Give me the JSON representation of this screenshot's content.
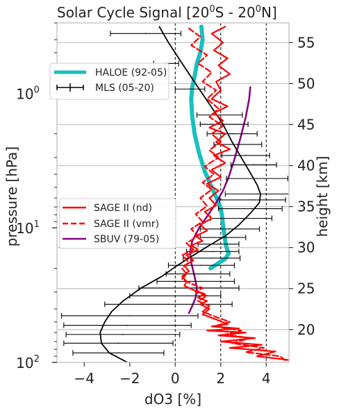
{
  "chart_data": {
    "type": "line",
    "title": "Solar Cycle Signal [20$^0$S - 20$^0$N]",
    "title_parts": {
      "a": "Solar Cycle Signal [20",
      "b": "0",
      "c": "S - 20",
      "d": "0",
      "e": "N]"
    },
    "xlabel": "dO3 [%]",
    "ylabel": "pressure [hPa]",
    "y2label": "height [km]",
    "xlim": [
      -5.2,
      5.0
    ],
    "ylim_pressure": [
      100,
      0.3
    ],
    "yscale": "log",
    "grid": true,
    "x_ticks": [
      -4,
      -2,
      0,
      2,
      4
    ],
    "x_tick_labels": [
      "−4",
      "−2",
      "0",
      "2",
      "4"
    ],
    "y_ticks": [
      1,
      10,
      100
    ],
    "y_tick_labels": [
      "10",
      "0",
      "10",
      "1",
      "10",
      "2"
    ],
    "y_tick_label_parts": [
      {
        "base": "10",
        "exp": "0"
      },
      {
        "base": "10",
        "exp": "1"
      },
      {
        "base": "10",
        "exp": "2"
      }
    ],
    "height_ticks": [
      20,
      25,
      30,
      35,
      40,
      45,
      50,
      55
    ],
    "height_tick_labels": [
      "20",
      "25",
      "30",
      "35",
      "40",
      "45",
      "50",
      "55"
    ],
    "vlines": [
      0,
      2,
      4
    ],
    "legend_top": {
      "placement": "upper-left",
      "entries": [
        {
          "label": "HALOE (92-05)"
        },
        {
          "label": "MLS (05-20)"
        }
      ]
    },
    "legend_bottom": {
      "placement": "center-left",
      "entries": [
        {
          "label": "SAGE II (nd)"
        },
        {
          "label": "SAGE II (vmr)"
        },
        {
          "label": "SBUV (79-05)"
        }
      ]
    },
    "series": [
      {
        "name": "HALOE (92-05)",
        "color": "#1abfbf",
        "points": [
          [
            1.15,
            0.32
          ],
          [
            1.2,
            0.4
          ],
          [
            1.1,
            0.5
          ],
          [
            0.95,
            0.6
          ],
          [
            0.85,
            0.75
          ],
          [
            0.75,
            0.9
          ],
          [
            0.7,
            1.1
          ],
          [
            0.75,
            1.5
          ],
          [
            0.85,
            2.0
          ],
          [
            1.05,
            2.8
          ],
          [
            1.3,
            3.8
          ],
          [
            1.6,
            5.0
          ],
          [
            1.85,
            6.2
          ],
          [
            2.0,
            7.2
          ],
          [
            2.05,
            8.0
          ],
          [
            2.1,
            9.5
          ],
          [
            2.15,
            11
          ],
          [
            2.2,
            12.5
          ],
          [
            2.25,
            14
          ],
          [
            2.35,
            15.5
          ],
          [
            2.2,
            17
          ],
          [
            1.85,
            18.5
          ],
          [
            1.55,
            20
          ]
        ]
      },
      {
        "name": "SBUV (79-05)",
        "color": "#800080",
        "points": [
          [
            3.3,
            0.9
          ],
          [
            3.25,
            1.1
          ],
          [
            3.1,
            1.5
          ],
          [
            2.85,
            2.2
          ],
          [
            2.6,
            3.1
          ],
          [
            2.35,
            4.2
          ],
          [
            2.1,
            5.3
          ],
          [
            1.8,
            6.5
          ],
          [
            1.45,
            8.0
          ],
          [
            1.05,
            10.0
          ],
          [
            0.75,
            12.5
          ],
          [
            0.65,
            15
          ],
          [
            0.7,
            18
          ],
          [
            0.85,
            23
          ],
          [
            0.95,
            28
          ],
          [
            0.9,
            33
          ],
          [
            0.75,
            38
          ],
          [
            0.6,
            43
          ]
        ]
      },
      {
        "name": "MLS (05-20)",
        "color": "#000000",
        "points": [
          [
            -0.7,
            0.32
          ],
          [
            -0.3,
            0.42
          ],
          [
            0.3,
            0.6
          ],
          [
            0.9,
            0.85
          ],
          [
            1.5,
            1.2
          ],
          [
            2.1,
            1.7
          ],
          [
            2.5,
            2.3
          ],
          [
            2.9,
            3.0
          ],
          [
            3.3,
            3.9
          ],
          [
            3.6,
            4.8
          ],
          [
            3.75,
            5.6
          ],
          [
            3.7,
            6.5
          ],
          [
            3.3,
            7.8
          ],
          [
            2.8,
            9.5
          ],
          [
            2.2,
            11.5
          ],
          [
            1.5,
            13.5
          ],
          [
            0.8,
            16
          ],
          [
            0.1,
            19
          ],
          [
            -0.6,
            23
          ],
          [
            -1.5,
            28
          ],
          [
            -2.3,
            35
          ],
          [
            -2.8,
            42
          ],
          [
            -3.1,
            50
          ],
          [
            -3.3,
            60
          ],
          [
            -3.25,
            72
          ],
          [
            -2.9,
            85
          ],
          [
            -2.1,
            100
          ]
        ],
        "errorbars": [
          {
            "p": 0.36,
            "x": -1.3,
            "e": 1.55
          },
          {
            "p": 0.6,
            "x": -0.4,
            "e": 0.55
          },
          {
            "p": 0.93,
            "x": 0.65,
            "e": 0.65
          },
          {
            "p": 1.45,
            "x": 1.95,
            "e": 1.0
          },
          {
            "p": 1.7,
            "x": 2.15,
            "e": 1.05
          },
          {
            "p": 2.0,
            "x": 2.5,
            "e": 1.1
          },
          {
            "p": 2.4,
            "x": 2.75,
            "e": 1.05
          },
          {
            "p": 2.9,
            "x": 3.1,
            "e": 1.05
          },
          {
            "p": 3.4,
            "x": 3.45,
            "e": 1.0
          },
          {
            "p": 4.3,
            "x": 3.6,
            "e": 1.35
          },
          {
            "p": 5.6,
            "x": 3.65,
            "e": 1.45
          },
          {
            "p": 6.2,
            "x": 3.4,
            "e": 1.45
          },
          {
            "p": 7.2,
            "x": 3.3,
            "e": 1.4
          },
          {
            "p": 8.5,
            "x": 2.9,
            "e": 1.35
          },
          {
            "p": 10.2,
            "x": 2.4,
            "e": 1.3
          },
          {
            "p": 11.8,
            "x": 2.1,
            "e": 1.0
          },
          {
            "p": 13.2,
            "x": 1.9,
            "e": 0.9
          },
          {
            "p": 15.0,
            "x": 1.65,
            "e": 1.15
          },
          {
            "p": 16.8,
            "x": 1.6,
            "e": 1.25
          },
          {
            "p": 19.0,
            "x": 1.15,
            "e": 1.45
          },
          {
            "p": 22.0,
            "x": 1.0,
            "e": 1.4
          },
          {
            "p": 25.0,
            "x": 0.9,
            "e": 1.7
          },
          {
            "p": 28.0,
            "x": 0.6,
            "e": 2.2
          },
          {
            "p": 32.0,
            "x": 0.0,
            "e": 2.0
          },
          {
            "p": 37.0,
            "x": -0.3,
            "e": 2.8
          },
          {
            "p": 45.0,
            "x": -2.0,
            "e": 3.0
          },
          {
            "p": 53.0,
            "x": -2.1,
            "e": 2.8
          },
          {
            "p": 62.0,
            "x": -2.3,
            "e": 2.5
          },
          {
            "p": 72.0,
            "x": -2.5,
            "e": 2.4
          },
          {
            "p": 85.0,
            "x": -2.5,
            "e": 2.0
          }
        ]
      },
      {
        "name": "SAGE II (nd)",
        "color": "#ff0000",
        "style": "solid",
        "points": [
          [
            2.2,
            0.32
          ],
          [
            1.6,
            0.36
          ],
          [
            2.1,
            0.42
          ],
          [
            1.7,
            0.48
          ],
          [
            2.3,
            0.55
          ],
          [
            1.9,
            0.62
          ],
          [
            2.4,
            0.72
          ],
          [
            1.8,
            0.82
          ],
          [
            2.0,
            0.95
          ],
          [
            1.6,
            1.1
          ],
          [
            2.3,
            1.25
          ],
          [
            1.7,
            1.4
          ],
          [
            2.1,
            1.6
          ],
          [
            1.5,
            1.8
          ],
          [
            2.2,
            2.0
          ],
          [
            1.8,
            2.3
          ],
          [
            2.4,
            2.6
          ],
          [
            1.7,
            2.9
          ],
          [
            2.2,
            3.3
          ],
          [
            1.6,
            3.7
          ],
          [
            2.0,
            4.2
          ],
          [
            1.4,
            4.7
          ],
          [
            1.9,
            5.3
          ],
          [
            1.5,
            6.0
          ],
          [
            1.8,
            6.8
          ],
          [
            1.3,
            7.6
          ],
          [
            1.6,
            8.5
          ],
          [
            1.1,
            9.5
          ],
          [
            1.4,
            10.5
          ],
          [
            0.9,
            11.5
          ],
          [
            1.2,
            12.5
          ],
          [
            0.7,
            13.5
          ],
          [
            1.0,
            14.5
          ],
          [
            0.5,
            16
          ],
          [
            0.8,
            17.5
          ],
          [
            0.4,
            19
          ],
          [
            0.6,
            21
          ],
          [
            0.3,
            23
          ],
          [
            0.5,
            25
          ],
          [
            0.4,
            27
          ],
          [
            0.8,
            29
          ],
          [
            1.3,
            31
          ],
          [
            1.0,
            33
          ],
          [
            1.4,
            35
          ],
          [
            1.1,
            37
          ],
          [
            1.5,
            40
          ],
          [
            1.2,
            44
          ],
          [
            1.8,
            48
          ],
          [
            2.3,
            52
          ],
          [
            1.6,
            54
          ],
          [
            2.8,
            56
          ],
          [
            1.4,
            58
          ],
          [
            3.1,
            60
          ],
          [
            1.9,
            63
          ],
          [
            3.5,
            66
          ],
          [
            2.0,
            70
          ],
          [
            3.8,
            74
          ],
          [
            2.4,
            78
          ],
          [
            4.4,
            83
          ],
          [
            3.6,
            90
          ],
          [
            5.0,
            96
          ]
        ]
      },
      {
        "name": "SAGE II (vmr)",
        "color": "#ff0000",
        "style": "dashed",
        "points": [
          [
            0.6,
            0.33
          ],
          [
            1.1,
            0.38
          ],
          [
            0.7,
            0.44
          ],
          [
            1.4,
            0.52
          ],
          [
            1.0,
            0.6
          ],
          [
            1.6,
            0.7
          ],
          [
            1.2,
            0.82
          ],
          [
            1.8,
            0.95
          ],
          [
            1.4,
            1.1
          ],
          [
            1.9,
            1.3
          ],
          [
            1.5,
            1.5
          ],
          [
            2.1,
            1.75
          ],
          [
            1.6,
            2.0
          ],
          [
            2.0,
            2.3
          ],
          [
            1.5,
            2.65
          ],
          [
            1.9,
            3.0
          ],
          [
            1.3,
            3.5
          ],
          [
            1.7,
            4.0
          ],
          [
            1.2,
            4.6
          ],
          [
            1.6,
            5.2
          ],
          [
            1.1,
            6.0
          ],
          [
            1.4,
            6.9
          ],
          [
            0.9,
            7.9
          ],
          [
            1.2,
            9.0
          ],
          [
            0.7,
            10.2
          ],
          [
            1.0,
            11.5
          ],
          [
            0.5,
            13
          ],
          [
            0.8,
            14.5
          ],
          [
            0.3,
            16
          ],
          [
            0.6,
            18
          ],
          [
            0.3,
            20
          ],
          [
            0.5,
            22
          ],
          [
            0.3,
            24
          ],
          [
            0.7,
            26
          ],
          [
            1.2,
            28
          ],
          [
            0.9,
            30
          ],
          [
            1.4,
            32
          ],
          [
            1.0,
            35
          ],
          [
            1.5,
            38
          ],
          [
            1.2,
            42
          ],
          [
            1.8,
            46
          ],
          [
            2.4,
            50
          ],
          [
            1.7,
            54
          ],
          [
            2.9,
            58
          ],
          [
            2.2,
            62
          ],
          [
            3.3,
            66
          ],
          [
            2.5,
            72
          ],
          [
            3.9,
            78
          ],
          [
            3.1,
            84
          ],
          [
            4.6,
            90
          ],
          [
            4.9,
            98
          ]
        ]
      }
    ]
  }
}
